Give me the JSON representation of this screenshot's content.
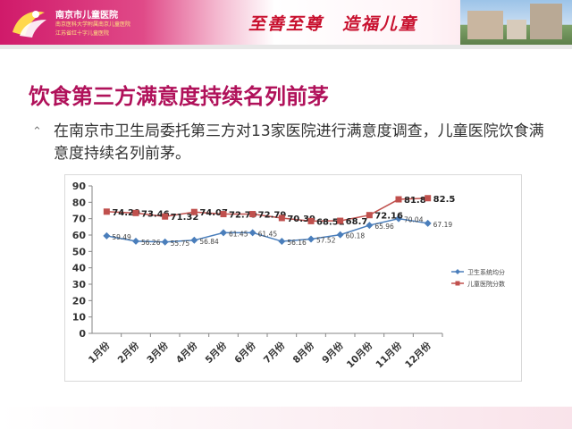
{
  "header": {
    "hospital_name": "南京市儿童医院",
    "hospital_sub1": "南京医科大学附属南京儿童医院",
    "hospital_sub2": "江苏省红十字儿童医院",
    "slogan": "至善至尊　造福儿童",
    "colors": {
      "brand": "#d01a6a",
      "slogan": "#c8102e"
    }
  },
  "slide": {
    "title": "饮食第三方满意度持续名列前茅",
    "bullet_icon": "triangle-caret-icon",
    "bullet": "在南京市卫生局委托第三方对13家医院进行满意度调查，儿童医院饮食满意度持续名列前茅。"
  },
  "chart_data": {
    "type": "line",
    "categories": [
      "1月份",
      "2月份",
      "3月份",
      "4月份",
      "5月份",
      "6月份",
      "7月份",
      "8月份",
      "9月份",
      "10月份",
      "11月份",
      "12月份"
    ],
    "series": [
      {
        "name": "卫生系统均分",
        "color": "#4a7ebb",
        "marker": "diamond",
        "values": [
          59.49,
          56.26,
          55.75,
          56.84,
          61.45,
          61.45,
          56.16,
          57.52,
          60.18,
          65.96,
          70.04,
          67.19
        ],
        "labels": [
          "59.49",
          "56.26",
          "55.75",
          "56.84",
          "61.45",
          "61.45",
          "56.16",
          "57.52",
          "60.18",
          "65.96",
          "70.04",
          "67.19"
        ]
      },
      {
        "name": "儿童医院分数",
        "color": "#c0504d",
        "marker": "square",
        "values": [
          74.29,
          73.46,
          71.32,
          74.07,
          72.79,
          72.79,
          70.39,
          68.51,
          68.7,
          72.16,
          81.8,
          82.5
        ],
        "labels": [
          "74.29",
          "73.46",
          "71.32",
          "74.07",
          "72.79",
          "72.79",
          "70.39",
          "68.51",
          "68.7",
          "72.16",
          "81.8",
          "82.5"
        ]
      }
    ],
    "y_ticks": [
      "0",
      "10",
      "20",
      "30",
      "40",
      "50",
      "60",
      "70",
      "80",
      "90"
    ],
    "ylim": [
      0,
      90
    ],
    "grid": false,
    "legend_position": "right"
  }
}
